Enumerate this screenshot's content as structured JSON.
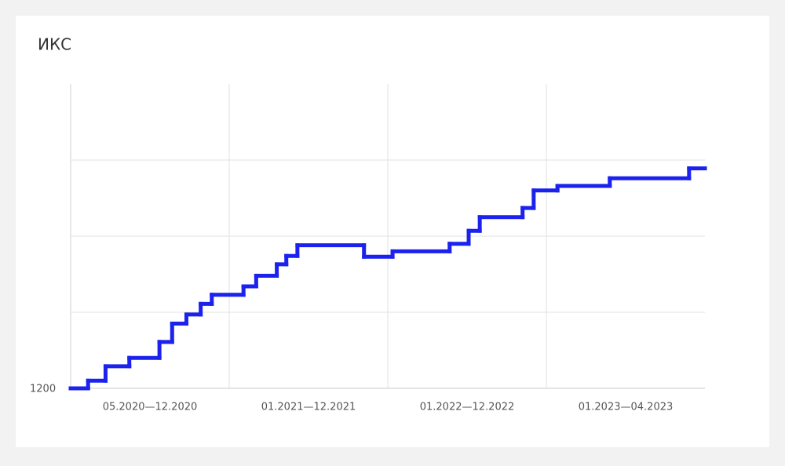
{
  "chart_data": {
    "type": "step",
    "title": "ИКС",
    "categories": [
      "05.2020—12.2020",
      "01.2021—12.2021",
      "01.2022—12.2022",
      "01.2023—04.2023"
    ],
    "series": [
      {
        "color": "#1c22ee",
        "x": [
          0,
          0.11,
          0.22,
          0.37,
          0.56,
          0.64,
          0.73,
          0.82,
          0.89,
          1.09,
          1.17,
          1.3,
          1.36,
          1.43,
          1.85,
          2.03,
          2.39,
          2.51,
          2.58,
          2.85,
          2.92,
          3.07,
          3.4,
          3.9
        ],
        "values": [
          1200,
          1210,
          1229,
          1240,
          1261,
          1285,
          1297,
          1311,
          1323,
          1334,
          1348,
          1363,
          1374,
          1388,
          1373,
          1380,
          1390,
          1407,
          1425,
          1437,
          1460,
          1466,
          1476,
          1489
        ]
      }
    ],
    "xlim": [
      0,
      4
    ],
    "ylim": [
      1200,
      1600
    ],
    "yticks": [
      1200,
      {
        "value": 1300,
        "label": null
      },
      {
        "value": 1400,
        "label": null
      },
      {
        "value": 1500,
        "label": null
      }
    ],
    "grid": true
  }
}
